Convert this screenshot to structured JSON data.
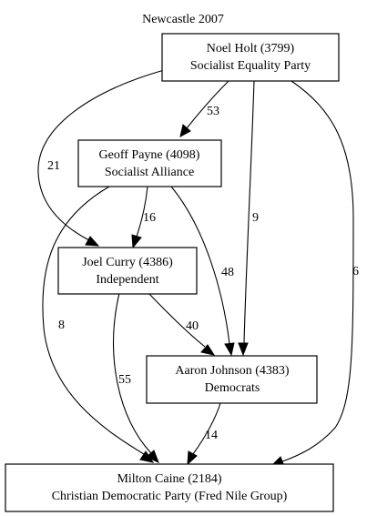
{
  "title": "Newcastle 2007",
  "nodes": {
    "holt": {
      "name": "Noel Holt (3799)",
      "party": "Socialist Equality Party"
    },
    "payne": {
      "name": "Geoff Payne (4098)",
      "party": "Socialist Alliance"
    },
    "curry": {
      "name": "Joel Curry (4386)",
      "party": "Independent"
    },
    "johnson": {
      "name": "Aaron Johnson (4383)",
      "party": "Democrats"
    },
    "caine": {
      "name": "Milton Caine (2184)",
      "party": "Christian Democratic Party (Fred Nile Group)"
    }
  },
  "edges": {
    "holt_payne": "53",
    "holt_curry": "21",
    "holt_johnson": "9",
    "holt_caine": "6",
    "payne_curry": "16",
    "payne_johnson": "48",
    "payne_caine": "8",
    "curry_johnson": "40",
    "curry_caine": "55",
    "johnson_caine": "14"
  },
  "colors": {
    "stroke": "#000000",
    "background": "#ffffff"
  }
}
